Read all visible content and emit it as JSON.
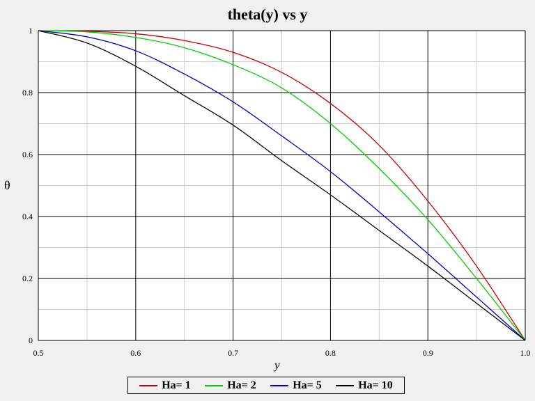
{
  "chart_data": {
    "type": "line",
    "title": "theta(y) vs y",
    "xlabel": "y",
    "ylabel": "θ",
    "xlim": [
      0.5,
      1.0
    ],
    "ylim": [
      0,
      1
    ],
    "xticks": [
      "0.5",
      "0.6",
      "0.7",
      "0.8",
      "0.9",
      "1.0"
    ],
    "yticks": [
      "0",
      "0.2",
      "0.4",
      "0.6",
      "0.8",
      "1"
    ],
    "grid": true,
    "legend_position": "bottom",
    "x": [
      0.5,
      0.55,
      0.6,
      0.65,
      0.7,
      0.75,
      0.8,
      0.85,
      0.9,
      0.95,
      1.0
    ],
    "series": [
      {
        "name": "Ha= 1",
        "color": "#cc0000",
        "values": [
          1.0,
          0.998,
          0.99,
          0.968,
          0.93,
          0.865,
          0.765,
          0.63,
          0.45,
          0.24,
          0.0
        ]
      },
      {
        "name": "Ha= 2",
        "color": "#00cc00",
        "values": [
          1.0,
          0.996,
          0.978,
          0.945,
          0.89,
          0.815,
          0.7,
          0.555,
          0.39,
          0.2,
          0.0
        ]
      },
      {
        "name": "Ha= 5",
        "color": "#0000bb",
        "values": [
          1.0,
          0.98,
          0.935,
          0.86,
          0.77,
          0.66,
          0.545,
          0.415,
          0.28,
          0.14,
          0.0
        ]
      },
      {
        "name": "Ha= 10",
        "color": "#000000",
        "values": [
          1.0,
          0.96,
          0.885,
          0.79,
          0.695,
          0.58,
          0.47,
          0.355,
          0.24,
          0.12,
          0.0
        ]
      }
    ]
  }
}
